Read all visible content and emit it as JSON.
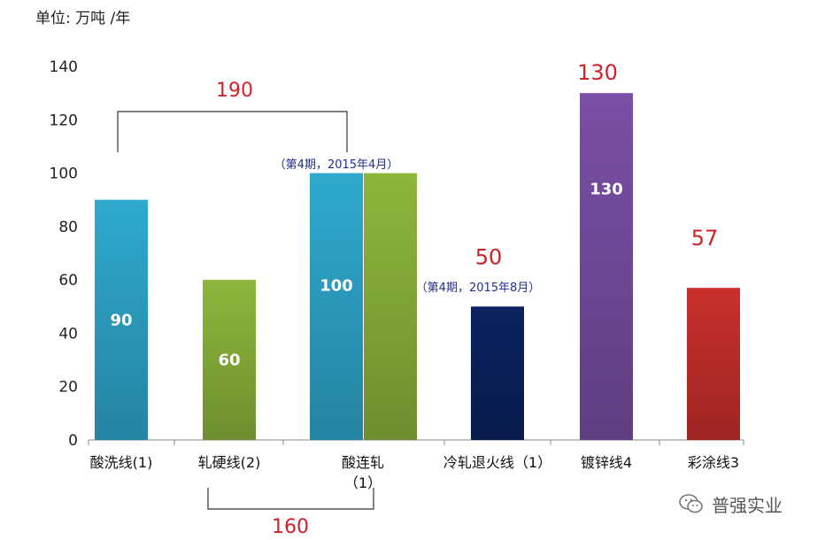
{
  "chart_data": {
    "type": "bar",
    "ylabel": "单位: 万吨 /年",
    "ylim": [
      0,
      140
    ],
    "yticks": [
      0,
      20,
      40,
      60,
      80,
      100,
      120,
      140
    ],
    "categories": [
      {
        "lines": [
          "酸洗线(1)"
        ]
      },
      {
        "lines": [
          "轧硬线(2)"
        ]
      },
      {
        "lines": [
          "酸连轧",
          "（1）"
        ]
      },
      {
        "lines": [
          "冷轧退火线（1）"
        ]
      },
      {
        "lines": [
          "镀锌线4"
        ]
      },
      {
        "lines": [
          "彩涂线3"
        ]
      }
    ],
    "bars": [
      {
        "category": 0,
        "value": 90,
        "inner_label": "90",
        "color": "#2FA9CF"
      },
      {
        "category": 1,
        "value": 60,
        "inner_label": "60",
        "color": "#8DB63C"
      },
      {
        "category": 2,
        "value": 100,
        "inner_label": "100",
        "color": "#2FA9CF",
        "side": "left"
      },
      {
        "category": 2,
        "value": 100,
        "inner_label": "",
        "color": "#8DB63C",
        "side": "right"
      },
      {
        "category": 3,
        "value": 50,
        "inner_label": "",
        "color": "#0B2260",
        "top_label": "50"
      },
      {
        "category": 4,
        "value": 130,
        "inner_label": "130",
        "color": "#7A4FA6",
        "top_label": "130"
      },
      {
        "category": 5,
        "value": 57,
        "inner_label": "",
        "color": "#C9302C",
        "top_label": "57"
      }
    ],
    "annotations": [
      {
        "text": "（第4期，2015年4月）",
        "category": 2
      },
      {
        "text": "（第4期，2015年8月）",
        "category": 3
      }
    ],
    "brackets": [
      {
        "from": 0,
        "to": 2,
        "position": "top",
        "label": "190"
      },
      {
        "from": 1,
        "to": 2,
        "position": "bottom",
        "label": "160"
      }
    ],
    "colors": {
      "label_red": "#D0212A",
      "annotation_blue": "#1F2F8F"
    }
  },
  "watermark": {
    "text": "普强实业"
  }
}
